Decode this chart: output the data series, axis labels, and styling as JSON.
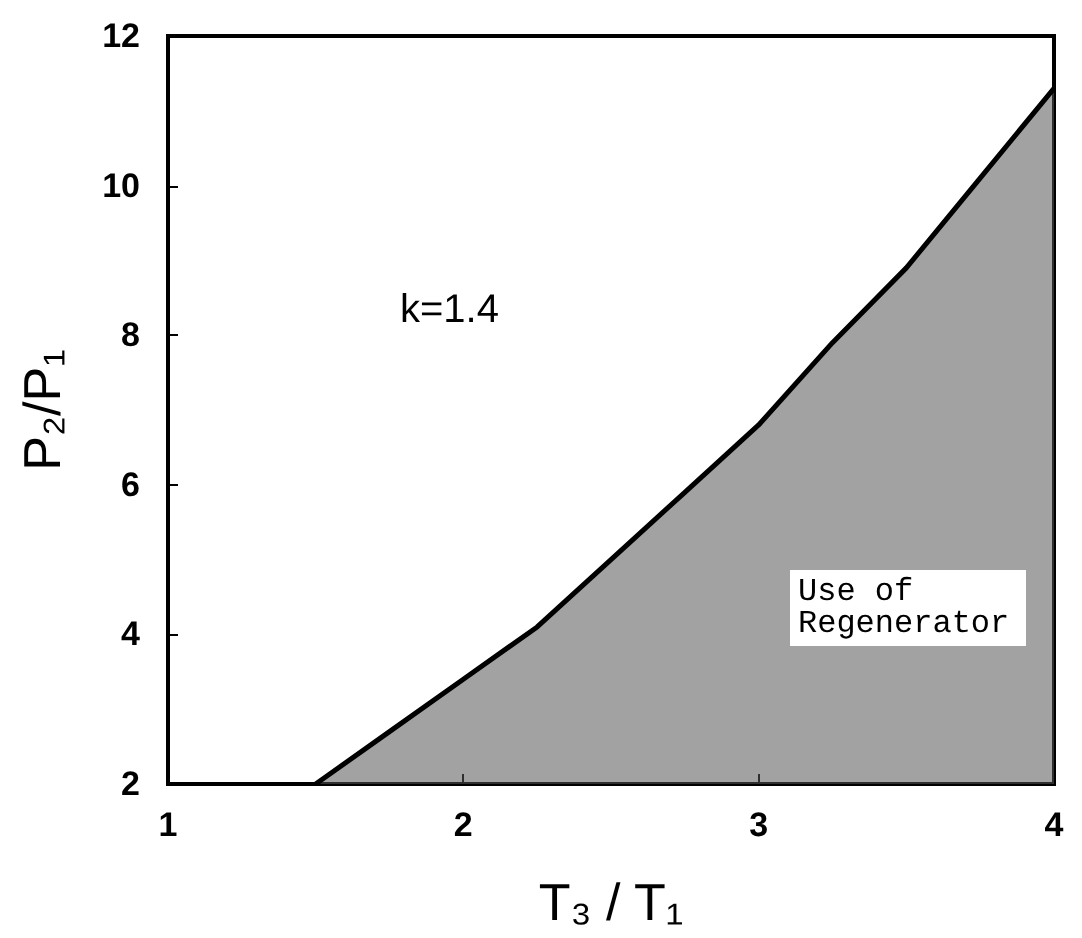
{
  "chart_data": {
    "type": "area",
    "xlabel": "T₃ / T₁",
    "ylabel": "P₂/P₁",
    "x": [
      1.5,
      1.75,
      2,
      2.25,
      2.5,
      2.75,
      3,
      3.25,
      3.5,
      3.75,
      4
    ],
    "series": [
      {
        "color": "#555555",
        "values": [
          2.0,
          2.7,
          3.4,
          4.1,
          5.0,
          5.9,
          6.8,
          7.9,
          8.9,
          10.1,
          11.3
        ]
      }
    ],
    "xlim": [
      1,
      4
    ],
    "xticks": [
      1,
      2,
      3,
      4
    ],
    "ylim": [
      2,
      12
    ],
    "yticks": [
      2,
      4,
      6,
      8,
      10,
      12
    ],
    "annotations": [
      "k=1.4",
      "Use of Regenerator"
    ],
    "grid": false,
    "marker": "none",
    "line_style": "solid"
  }
}
